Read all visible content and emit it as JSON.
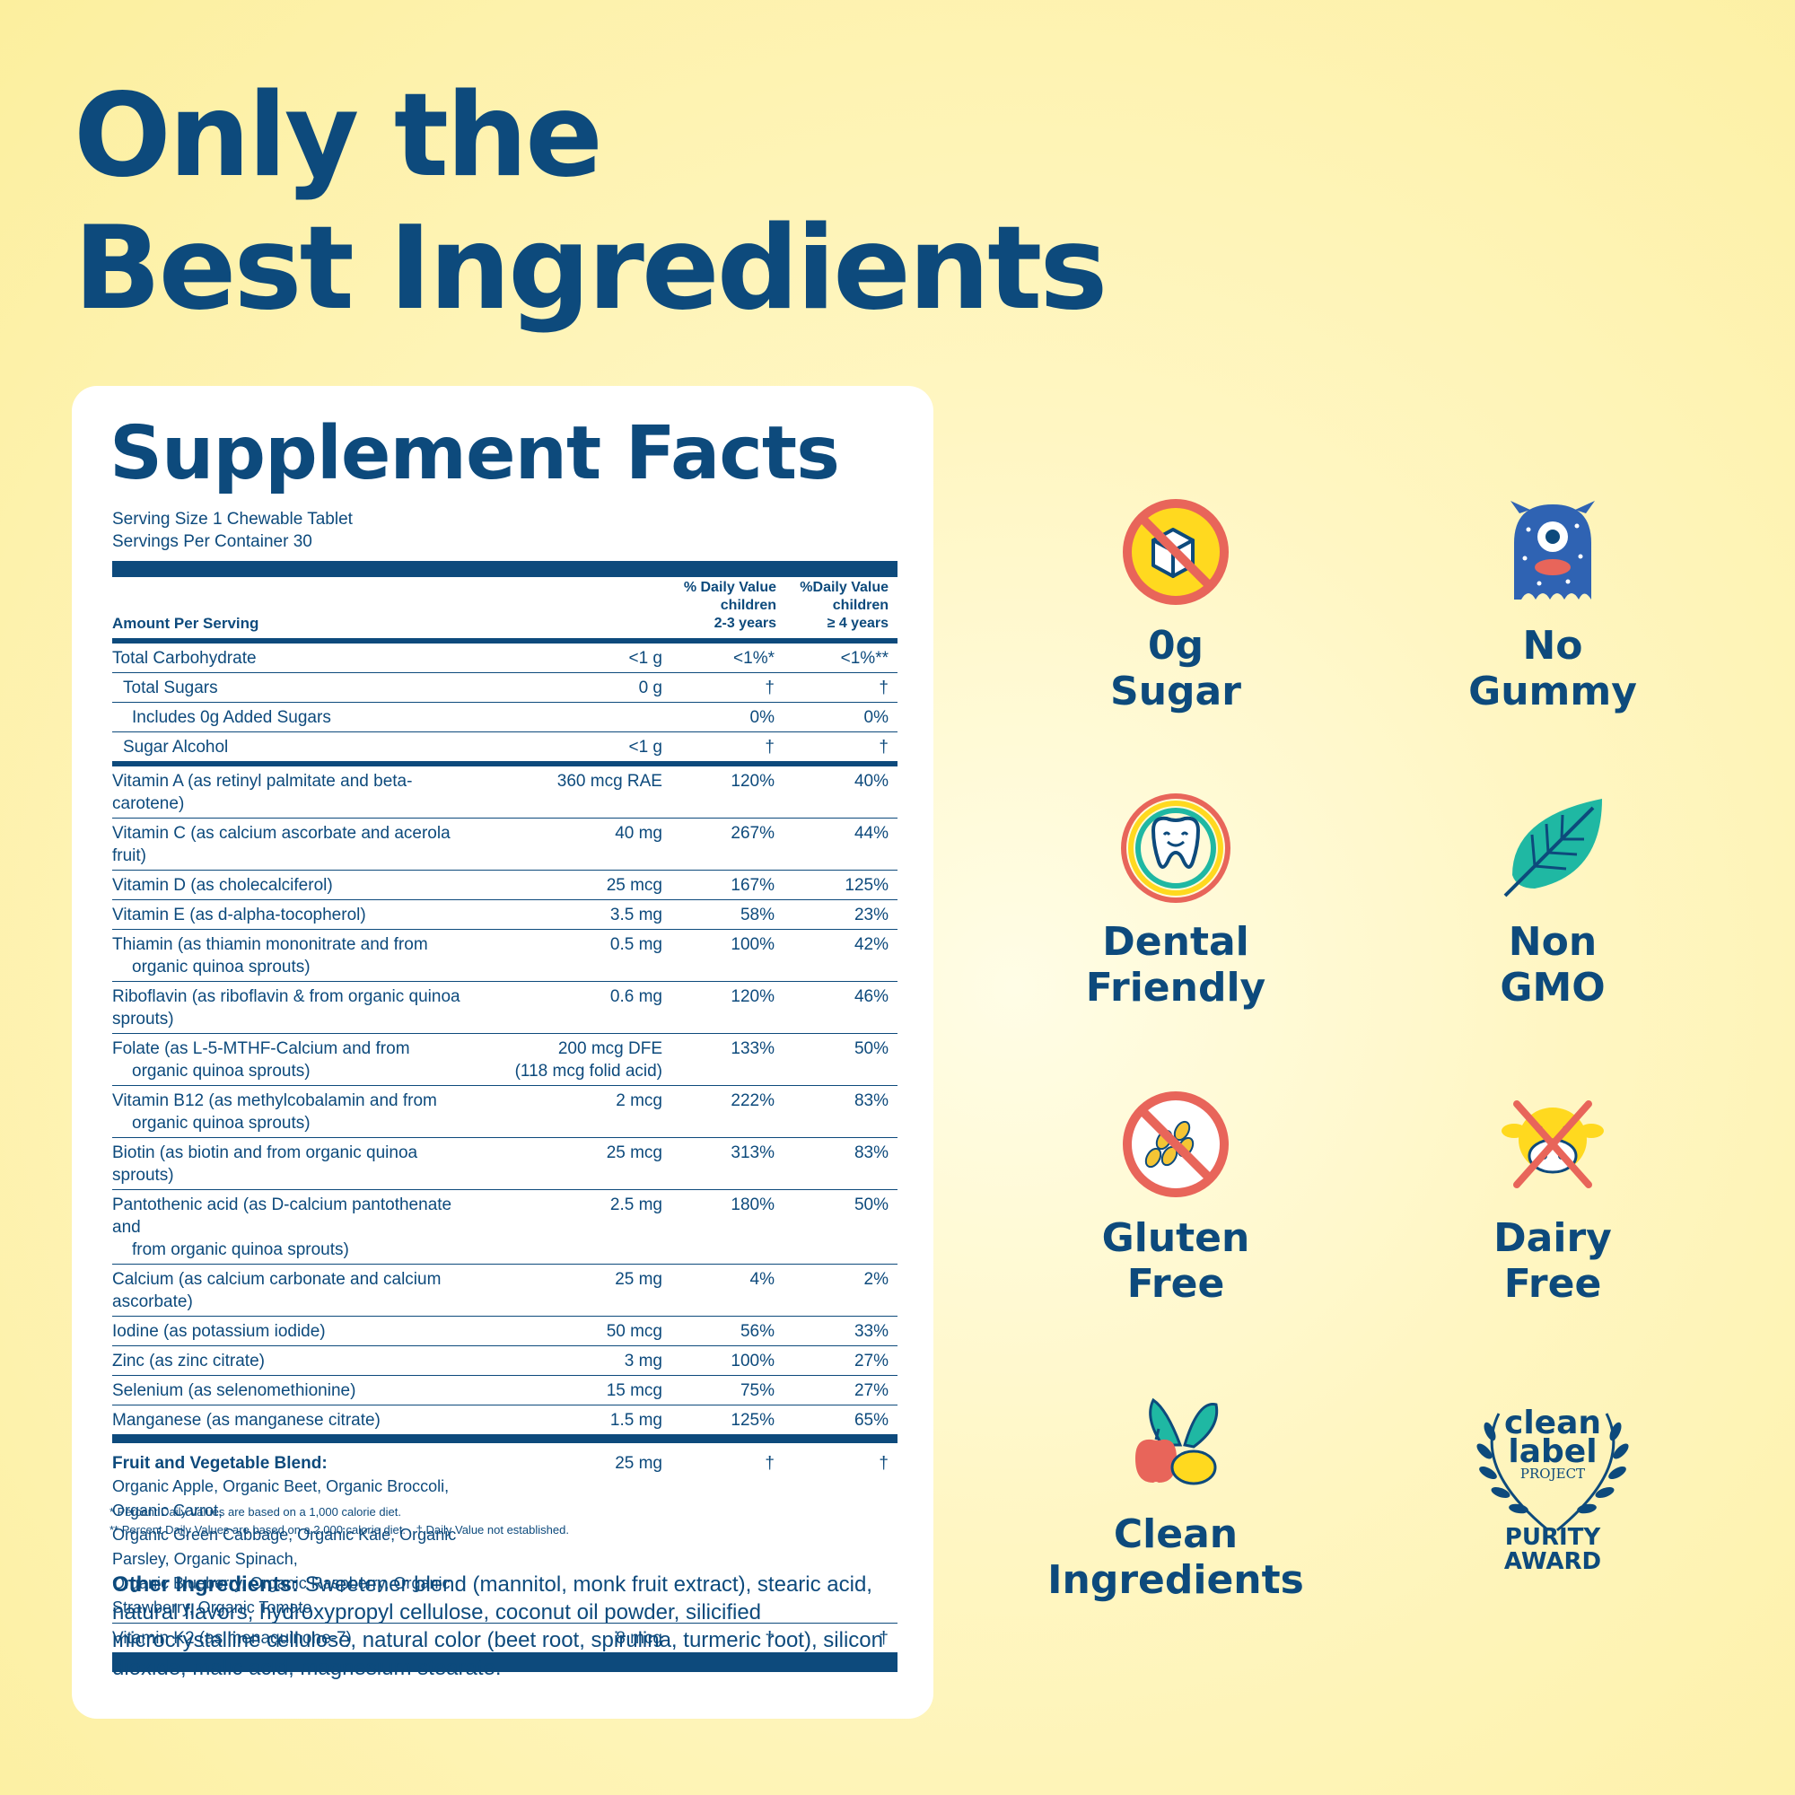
{
  "headline": {
    "line1": "Only the",
    "line2": "Best Ingredients"
  },
  "facts": {
    "title": "Supplement Facts",
    "serving_size": "Serving Size 1 Chewable Tablet",
    "servings_per_container": "Servings Per Container 30",
    "header": {
      "amount_per_serving": "Amount Per Serving",
      "dv1_line1": "% Daily Value",
      "dv1_line2": "children",
      "dv1_line3": "2-3 years",
      "dv2_line1": "%Daily Value",
      "dv2_line2": "children",
      "dv2_line3": "≥ 4 years"
    },
    "carbs": [
      {
        "name": "Total Carbohydrate",
        "amount": "<1 g",
        "dv1": "<1%*",
        "dv2": "<1%**"
      },
      {
        "name": "Total Sugars",
        "amount": "0 g",
        "dv1": "†",
        "dv2": "†"
      },
      {
        "name": "Includes 0g Added Sugars",
        "amount": "",
        "dv1": "0%",
        "dv2": "0%"
      },
      {
        "name": "Sugar Alcohol",
        "amount": "<1 g",
        "dv1": "†",
        "dv2": "†"
      }
    ],
    "nutrients": [
      {
        "name": "Vitamin A (as retinyl palmitate and beta-carotene)",
        "amount": "360 mcg RAE",
        "dv1": "120%",
        "dv2": "40%"
      },
      {
        "name": "Vitamin C (as calcium ascorbate and acerola fruit)",
        "amount": "40 mg",
        "dv1": "267%",
        "dv2": "44%"
      },
      {
        "name": "Vitamin D (as cholecalciferol)",
        "amount": "25 mcg",
        "dv1": "167%",
        "dv2": "125%"
      },
      {
        "name": "Vitamin E (as d-alpha-tocopherol)",
        "amount": "3.5 mg",
        "dv1": "58%",
        "dv2": "23%"
      },
      {
        "name": "Thiamin (as thiamin mononitrate and from",
        "name2": "organic quinoa sprouts)",
        "amount": "0.5 mg",
        "dv1": "100%",
        "dv2": "42%"
      },
      {
        "name": "Riboflavin (as riboflavin & from organic quinoa sprouts)",
        "amount": "0.6 mg",
        "dv1": "120%",
        "dv2": "46%"
      },
      {
        "name": "Folate (as L-5-MTHF-Calcium and from",
        "name2": "organic quinoa sprouts)",
        "amount": "200 mcg DFE",
        "amount2": "(118 mcg folid acid)",
        "dv1": "133%",
        "dv2": "50%"
      },
      {
        "name": "Vitamin B12 (as methylcobalamin and from",
        "name2": "organic quinoa sprouts)",
        "amount": "2 mcg",
        "dv1": "222%",
        "dv2": "83%"
      },
      {
        "name": "Biotin (as biotin and from organic quinoa sprouts)",
        "amount": "25 mcg",
        "dv1": "313%",
        "dv2": "83%"
      },
      {
        "name": "Pantothenic acid (as D-calcium pantothenate and",
        "name2": "from organic quinoa sprouts)",
        "amount": "2.5 mg",
        "dv1": "180%",
        "dv2": "50%"
      },
      {
        "name": "Calcium (as calcium carbonate and calcium ascorbate)",
        "amount": "25 mg",
        "dv1": "4%",
        "dv2": "2%"
      },
      {
        "name": "Iodine (as potassium iodide)",
        "amount": "50 mcg",
        "dv1": "56%",
        "dv2": "33%"
      },
      {
        "name": "Zinc (as zinc citrate)",
        "amount": "3 mg",
        "dv1": "100%",
        "dv2": "27%"
      },
      {
        "name": "Selenium (as selenomethionine)",
        "amount": "15 mcg",
        "dv1": "75%",
        "dv2": "27%"
      },
      {
        "name": "Manganese (as manganese citrate)",
        "amount": "1.5 mg",
        "dv1": "125%",
        "dv2": "65%"
      }
    ],
    "blend": {
      "title": "Fruit and Vegetable Blend:",
      "amount": "25 mg",
      "dv1": "†",
      "dv2": "†",
      "line1": "Organic Apple, Organic Beet, Organic Broccoli, Organic Carrot,",
      "line2": "Organic Green Cabbage, Organic Kale, Organic Parsley, Organic Spinach,",
      "line3": "Organic Blueberry, Organic Raspberry, Organic Strawberry, Organic Tomato"
    },
    "k2": {
      "name": "Vitamin K2 (as menaquinone-7)",
      "amount": "8 mcg",
      "dv1": "†",
      "dv2": "†"
    },
    "footnote1": "* Percent Daily Values are based on a 1,000 calorie diet.",
    "footnote2": "** Percent Daily Values are based on a 2,000 calorie diet.",
    "footnote3": "† Daily Value not established.",
    "other_label": "Other Ingredients:",
    "other_text": " Sweetener blend (mannitol, monk fruit extract), stearic acid, natural flavors, hydroxypropyl cellulose, coconut oil powder, silicified microcrystalline cellulose, natural color (beet root, spirulina, turmeric root), silicon dioxide, malic acid, magnesium stearate."
  },
  "badges": {
    "sugar": {
      "label": "0g\nSugar",
      "icon": "no-sugar-icon"
    },
    "gummy": {
      "label": "No\nGummy",
      "icon": "gummy-monster-icon"
    },
    "dental": {
      "label": "Dental\nFriendly",
      "icon": "happy-tooth-icon"
    },
    "gmo": {
      "label": "Non\nGMO",
      "icon": "leaf-icon"
    },
    "gluten": {
      "label": "Gluten\nFree",
      "icon": "no-wheat-icon"
    },
    "dairy": {
      "label": "Dairy\nFree",
      "icon": "no-cow-icon"
    },
    "clean": {
      "label": "Clean\nIngredients",
      "icon": "fruit-veg-icon"
    },
    "award": {
      "label": "PURITY\nAWARD",
      "logo_line1": "clean",
      "logo_line2": "label",
      "logo_line3": "PROJECT",
      "icon": "laurel-wreath-icon"
    }
  },
  "colors": {
    "navy": "#0d4a7c",
    "background": "#fff3b0",
    "red": "#e8655a",
    "yellow": "#ffd91f",
    "teal": "#1fb8a3"
  }
}
